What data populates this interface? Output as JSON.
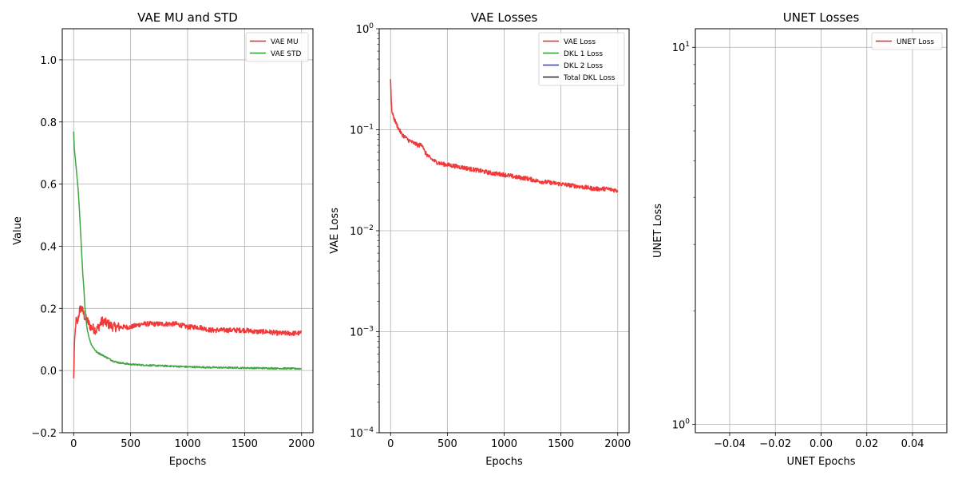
{
  "chart_data": [
    {
      "type": "line",
      "title": "VAE MU and STD",
      "xlabel": "Epochs",
      "ylabel": "Value",
      "xlim": [
        -100,
        2100
      ],
      "ylim": [
        -0.2,
        1.1
      ],
      "xticks": [
        0,
        500,
        1000,
        1500,
        2000
      ],
      "xtick_labels": [
        "0",
        "500",
        "1000",
        "1500",
        "2000"
      ],
      "yticks": [
        -0.2,
        0.0,
        0.2,
        0.4,
        0.6,
        0.8,
        1.0
      ],
      "ytick_labels": [
        "−0.2",
        "0.0",
        "0.2",
        "0.4",
        "0.6",
        "0.8",
        "1.0"
      ],
      "grid": true,
      "legend_position": "top-right",
      "series": [
        {
          "name": "VAE MU",
          "color": "#f02424",
          "x": [
            0,
            5,
            10,
            20,
            30,
            40,
            50,
            60,
            70,
            80,
            90,
            100,
            120,
            150,
            200,
            250,
            300,
            350,
            400,
            500,
            600,
            700,
            800,
            900,
            1000,
            1100,
            1200,
            1300,
            1400,
            1500,
            1600,
            1700,
            1800,
            1900,
            2000
          ],
          "values": [
            -0.03,
            0.06,
            0.1,
            0.16,
            0.15,
            0.17,
            0.19,
            0.2,
            0.2,
            0.19,
            0.18,
            0.17,
            0.16,
            0.14,
            0.13,
            0.16,
            0.15,
            0.14,
            0.14,
            0.14,
            0.15,
            0.15,
            0.15,
            0.15,
            0.14,
            0.14,
            0.13,
            0.13,
            0.13,
            0.13,
            0.125,
            0.125,
            0.12,
            0.12,
            0.12
          ]
        },
        {
          "name": "VAE STD",
          "color": "#2e9a2e",
          "x": [
            0,
            5,
            10,
            20,
            30,
            40,
            50,
            60,
            70,
            80,
            90,
            100,
            110,
            120,
            140,
            160,
            180,
            200,
            250,
            300,
            350,
            400,
            500,
            600,
            700,
            800,
            1000,
            1200,
            1400,
            1600,
            1800,
            2000
          ],
          "values": [
            0.77,
            0.72,
            0.7,
            0.66,
            0.62,
            0.58,
            0.52,
            0.45,
            0.38,
            0.31,
            0.26,
            0.2,
            0.16,
            0.13,
            0.1,
            0.08,
            0.07,
            0.06,
            0.05,
            0.04,
            0.03,
            0.025,
            0.02,
            0.018,
            0.016,
            0.015,
            0.012,
            0.01,
            0.009,
            0.008,
            0.007,
            0.006
          ]
        }
      ]
    },
    {
      "type": "line",
      "title": "VAE Losses",
      "xlabel": "Epochs",
      "ylabel": "VAE Loss",
      "xlim": [
        -100,
        2100
      ],
      "ylim": [
        0.0001,
        1
      ],
      "yscale": "log",
      "xticks": [
        0,
        500,
        1000,
        1500,
        2000
      ],
      "xtick_labels": [
        "0",
        "500",
        "1000",
        "1500",
        "2000"
      ],
      "yticks": [
        0.0001,
        0.001,
        0.01,
        0.1,
        1
      ],
      "ytick_labels": [
        {
          "base": "10",
          "exp": "−4"
        },
        {
          "base": "10",
          "exp": "−3"
        },
        {
          "base": "10",
          "exp": "−2"
        },
        {
          "base": "10",
          "exp": "−1"
        },
        {
          "base": "10",
          "exp": "0"
        }
      ],
      "grid": true,
      "legend_position": "top-right",
      "series": [
        {
          "name": "VAE Loss",
          "color": "#f02424",
          "x": [
            0,
            5,
            10,
            20,
            30,
            50,
            75,
            100,
            150,
            200,
            250,
            280,
            300,
            350,
            400,
            450,
            500,
            600,
            700,
            800,
            900,
            1000,
            1100,
            1200,
            1300,
            1400,
            1500,
            1600,
            1700,
            1800,
            1900,
            2000
          ],
          "values": [
            0.32,
            0.2,
            0.16,
            0.14,
            0.13,
            0.115,
            0.1,
            0.09,
            0.08,
            0.074,
            0.07,
            0.072,
            0.06,
            0.052,
            0.048,
            0.046,
            0.045,
            0.043,
            0.041,
            0.039,
            0.037,
            0.036,
            0.034,
            0.033,
            0.031,
            0.03,
            0.029,
            0.028,
            0.027,
            0.026,
            0.026,
            0.025
          ]
        },
        {
          "name": "DKL 1 Loss",
          "color": "#2e9a2e",
          "x": [],
          "values": []
        },
        {
          "name": "DKL 2 Loss",
          "color": "#2a3bd6",
          "x": [],
          "values": []
        },
        {
          "name": "Total DKL Loss",
          "color": "#222222",
          "x": [],
          "values": []
        }
      ]
    },
    {
      "type": "line",
      "title": "UNET Losses",
      "xlabel": "UNET Epochs",
      "ylabel": "UNET Loss",
      "xlim": [
        -0.055,
        0.055
      ],
      "ylim": [
        0.95,
        11.2
      ],
      "yscale": "log",
      "xticks": [
        -0.04,
        -0.02,
        0.0,
        0.02,
        0.04
      ],
      "xtick_labels": [
        "−0.04",
        "−0.02",
        "0.00",
        "0.02",
        "0.04"
      ],
      "yticks": [
        1,
        10
      ],
      "ytick_labels": [
        {
          "base": "10",
          "exp": "0"
        },
        {
          "base": "10",
          "exp": "1"
        }
      ],
      "grid": true,
      "legend_position": "top-right",
      "series": [
        {
          "name": "UNET Loss",
          "color": "#f02424",
          "x": [],
          "values": []
        }
      ]
    }
  ]
}
